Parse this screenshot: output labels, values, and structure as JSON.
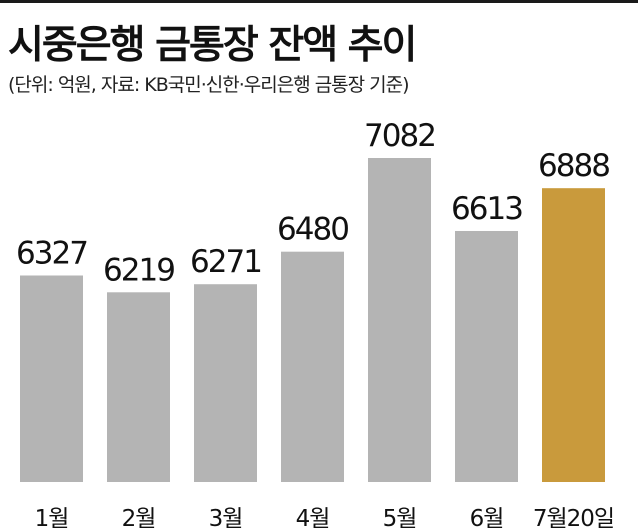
{
  "header": {
    "title": "시중은행 금통장 잔액 추이",
    "subtitle": "(단위: 억원, 자료: KB국민·신한·우리은행 금통장 기준)"
  },
  "colors": {
    "bar": "#b4b4b4",
    "highlight": "#c99a3c",
    "text": "#111111"
  },
  "chart_data": {
    "type": "bar",
    "title": "시중은행 금통장 잔액 추이",
    "subtitle": "(단위: 억원, 자료: KB국민·신한·우리은행 금통장 기준)",
    "categories": [
      "1월",
      "2월",
      "3월",
      "4월",
      "5월",
      "6월",
      "7월20일"
    ],
    "values": [
      6327,
      6219,
      6271,
      6480,
      7082,
      6613,
      6888
    ],
    "highlight_index": 6,
    "ylim": [
      5000,
      7300
    ],
    "grid": false,
    "legend": "none"
  }
}
